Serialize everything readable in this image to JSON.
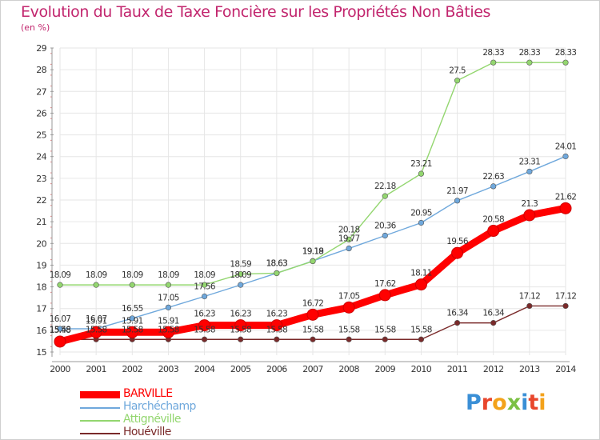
{
  "title": "Evolution du Taux de Taxe Foncière sur les Propriétés Non Bâties",
  "unit_label": "(en %)",
  "logo": {
    "letters": [
      "P",
      "r",
      "o",
      "x",
      "i",
      "t",
      "i"
    ],
    "colors": [
      "#3a8fd6",
      "#e8462c",
      "#f3a21b",
      "#7bc043",
      "#3a8fd6",
      "#e8462c",
      "#f3a21b"
    ]
  },
  "chart_data": {
    "type": "line",
    "title": "Evolution du Taux de Taxe Foncière sur les Propriétés Non Bâties",
    "ylabel": "(en %)",
    "xlabel": "",
    "x": [
      2000,
      2001,
      2002,
      2003,
      2004,
      2005,
      2006,
      2007,
      2008,
      2009,
      2010,
      2011,
      2012,
      2013,
      2014
    ],
    "ylim": [
      15,
      29
    ],
    "yticks": [
      15,
      16,
      17,
      18,
      19,
      20,
      21,
      22,
      23,
      24,
      25,
      26,
      27,
      28,
      29
    ],
    "grid": true,
    "legend_position": "bottom-left",
    "series": [
      {
        "name": "BARVILLE",
        "color": "#ff0000",
        "values": [
          15.48,
          15.91,
          15.91,
          15.91,
          16.23,
          16.23,
          16.23,
          16.72,
          17.05,
          17.62,
          18.11,
          19.56,
          20.58,
          21.3,
          21.62
        ]
      },
      {
        "name": "Harchéchamp",
        "color": "#6fa8dc",
        "values": [
          16.07,
          16.07,
          16.55,
          17.05,
          17.56,
          18.09,
          18.63,
          19.19,
          19.77,
          20.36,
          20.95,
          21.97,
          22.63,
          23.31,
          24.01
        ]
      },
      {
        "name": "Attignéville",
        "color": "#93d66f",
        "values": [
          18.09,
          18.09,
          18.09,
          18.09,
          18.09,
          18.59,
          18.63,
          19.18,
          20.18,
          22.18,
          23.21,
          27.5,
          28.33,
          28.33,
          28.33
        ]
      },
      {
        "name": "Houéville",
        "color": "#7a2a2a",
        "values": [
          15.58,
          15.58,
          15.58,
          15.58,
          15.58,
          15.58,
          15.58,
          15.58,
          15.58,
          15.58,
          15.58,
          16.34,
          16.34,
          17.12,
          17.12
        ]
      }
    ]
  }
}
